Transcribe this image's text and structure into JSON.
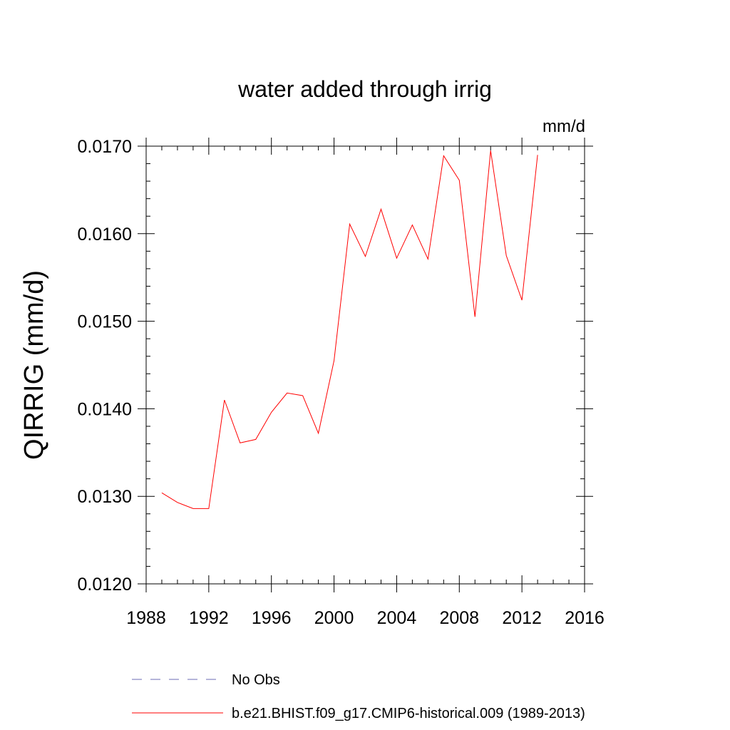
{
  "chart_data": {
    "type": "line",
    "title": "water added through irrig",
    "units_label": "mm/d",
    "xlabel": "",
    "ylabel": "QIRRIG  (mm/d)",
    "xlim": [
      1988,
      2016
    ],
    "ylim": [
      0.012,
      0.017
    ],
    "x_ticks": [
      1988,
      1992,
      1996,
      2000,
      2004,
      2008,
      2012,
      2016
    ],
    "y_ticks": [
      0.012,
      0.013,
      0.014,
      0.015,
      0.016,
      0.017
    ],
    "y_tick_labels": [
      "0.0120",
      "0.0130",
      "0.0140",
      "0.0150",
      "0.0160",
      "0.0170"
    ],
    "grid": false,
    "legend_placement": "bottom",
    "series": [
      {
        "name": "No Obs",
        "color": "#6b6bb5",
        "dash": "dashed",
        "x": [],
        "values": []
      },
      {
        "name": "b.e21.BHIST.f09_g17.CMIP6-historical.009 (1989-2013)",
        "color": "#ff0000",
        "dash": "solid",
        "x": [
          1989,
          1990,
          1991,
          1992,
          1993,
          1994,
          1995,
          1996,
          1997,
          1998,
          1999,
          2000,
          2001,
          2002,
          2003,
          2004,
          2005,
          2006,
          2007,
          2008,
          2009,
          2010,
          2011,
          2012,
          2013
        ],
        "values": [
          0.01304,
          0.01293,
          0.01286,
          0.01286,
          0.0141,
          0.01361,
          0.01365,
          0.01396,
          0.01418,
          0.01415,
          0.01372,
          0.01455,
          0.01611,
          0.01574,
          0.01628,
          0.01572,
          0.0161,
          0.01571,
          0.01689,
          0.01661,
          0.01505,
          0.01695,
          0.01575,
          0.01524,
          0.0169
        ]
      }
    ]
  }
}
